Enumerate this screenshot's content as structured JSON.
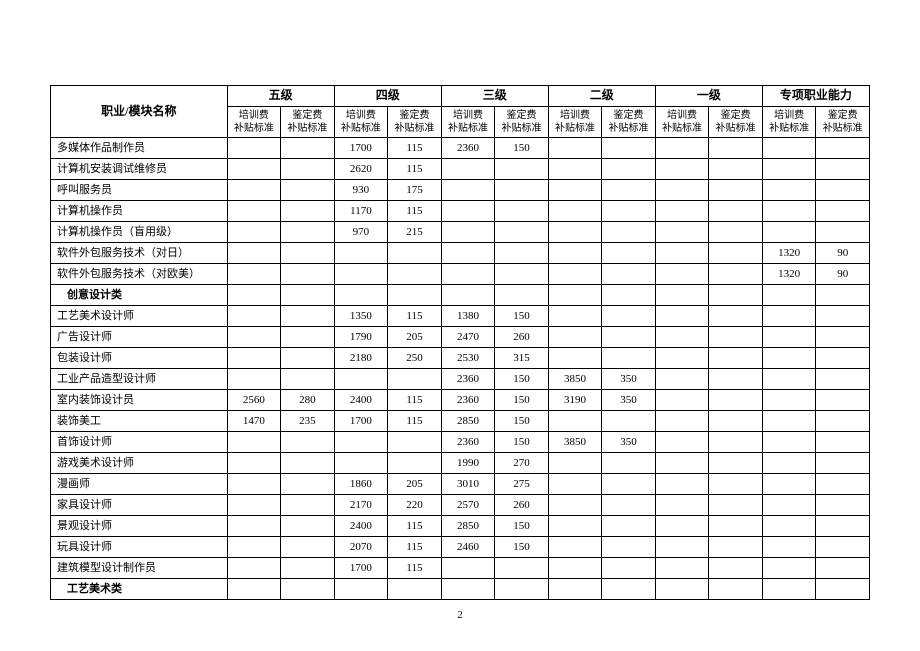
{
  "header": {
    "name_col": "职业/模块名称",
    "levels": [
      "五级",
      "四级",
      "三级",
      "二级",
      "一级",
      "专项职业能力"
    ],
    "sub_train": "培训费\n补贴标准",
    "sub_assess": "鉴定费\n补贴标准"
  },
  "rows": [
    {
      "name": "多媒体作品制作员",
      "cells": [
        "",
        "",
        "1700",
        "115",
        "2360",
        "150",
        "",
        "",
        "",
        "",
        "",
        ""
      ]
    },
    {
      "name": "计算机安装调试维修员",
      "cells": [
        "",
        "",
        "2620",
        "115",
        "",
        "",
        "",
        "",
        "",
        "",
        "",
        ""
      ]
    },
    {
      "name": "呼叫服务员",
      "cells": [
        "",
        "",
        "930",
        "175",
        "",
        "",
        "",
        "",
        "",
        "",
        "",
        ""
      ]
    },
    {
      "name": "计算机操作员",
      "cells": [
        "",
        "",
        "1170",
        "115",
        "",
        "",
        "",
        "",
        "",
        "",
        "",
        ""
      ]
    },
    {
      "name": "计算机操作员（盲用级）",
      "cells": [
        "",
        "",
        "970",
        "215",
        "",
        "",
        "",
        "",
        "",
        "",
        "",
        ""
      ]
    },
    {
      "name": "软件外包服务技术（对日）",
      "cells": [
        "",
        "",
        "",
        "",
        "",
        "",
        "",
        "",
        "",
        "",
        "1320",
        "90"
      ]
    },
    {
      "name": "软件外包服务技术（对欧美）",
      "cells": [
        "",
        "",
        "",
        "",
        "",
        "",
        "",
        "",
        "",
        "",
        "1320",
        "90"
      ]
    },
    {
      "section": true,
      "name": "创意设计类"
    },
    {
      "name": "工艺美术设计师",
      "cells": [
        "",
        "",
        "1350",
        "115",
        "1380",
        "150",
        "",
        "",
        "",
        "",
        "",
        ""
      ]
    },
    {
      "name": "广告设计师",
      "cells": [
        "",
        "",
        "1790",
        "205",
        "2470",
        "260",
        "",
        "",
        "",
        "",
        "",
        ""
      ]
    },
    {
      "name": "包装设计师",
      "cells": [
        "",
        "",
        "2180",
        "250",
        "2530",
        "315",
        "",
        "",
        "",
        "",
        "",
        ""
      ]
    },
    {
      "name": "工业产品造型设计师",
      "cells": [
        "",
        "",
        "",
        "",
        "2360",
        "150",
        "3850",
        "350",
        "",
        "",
        "",
        ""
      ]
    },
    {
      "name": "室内装饰设计员",
      "cells": [
        "2560",
        "280",
        "2400",
        "115",
        "2360",
        "150",
        "3190",
        "350",
        "",
        "",
        "",
        ""
      ]
    },
    {
      "name": "装饰美工",
      "cells": [
        "1470",
        "235",
        "1700",
        "115",
        "2850",
        "150",
        "",
        "",
        "",
        "",
        "",
        ""
      ]
    },
    {
      "name": "首饰设计师",
      "cells": [
        "",
        "",
        "",
        "",
        "2360",
        "150",
        "3850",
        "350",
        "",
        "",
        "",
        ""
      ]
    },
    {
      "name": "游戏美术设计师",
      "cells": [
        "",
        "",
        "",
        "",
        "1990",
        "270",
        "",
        "",
        "",
        "",
        "",
        ""
      ]
    },
    {
      "name": "漫画师",
      "cells": [
        "",
        "",
        "1860",
        "205",
        "3010",
        "275",
        "",
        "",
        "",
        "",
        "",
        ""
      ]
    },
    {
      "name": "家具设计师",
      "cells": [
        "",
        "",
        "2170",
        "220",
        "2570",
        "260",
        "",
        "",
        "",
        "",
        "",
        ""
      ]
    },
    {
      "name": "景观设计师",
      "cells": [
        "",
        "",
        "2400",
        "115",
        "2850",
        "150",
        "",
        "",
        "",
        "",
        "",
        ""
      ]
    },
    {
      "name": "玩具设计师",
      "cells": [
        "",
        "",
        "2070",
        "115",
        "2460",
        "150",
        "",
        "",
        "",
        "",
        "",
        ""
      ]
    },
    {
      "name": "建筑模型设计制作员",
      "cells": [
        "",
        "",
        "1700",
        "115",
        "",
        "",
        "",
        "",
        "",
        "",
        "",
        ""
      ]
    },
    {
      "section": true,
      "name": "工艺美术类"
    }
  ],
  "page_number": "2"
}
